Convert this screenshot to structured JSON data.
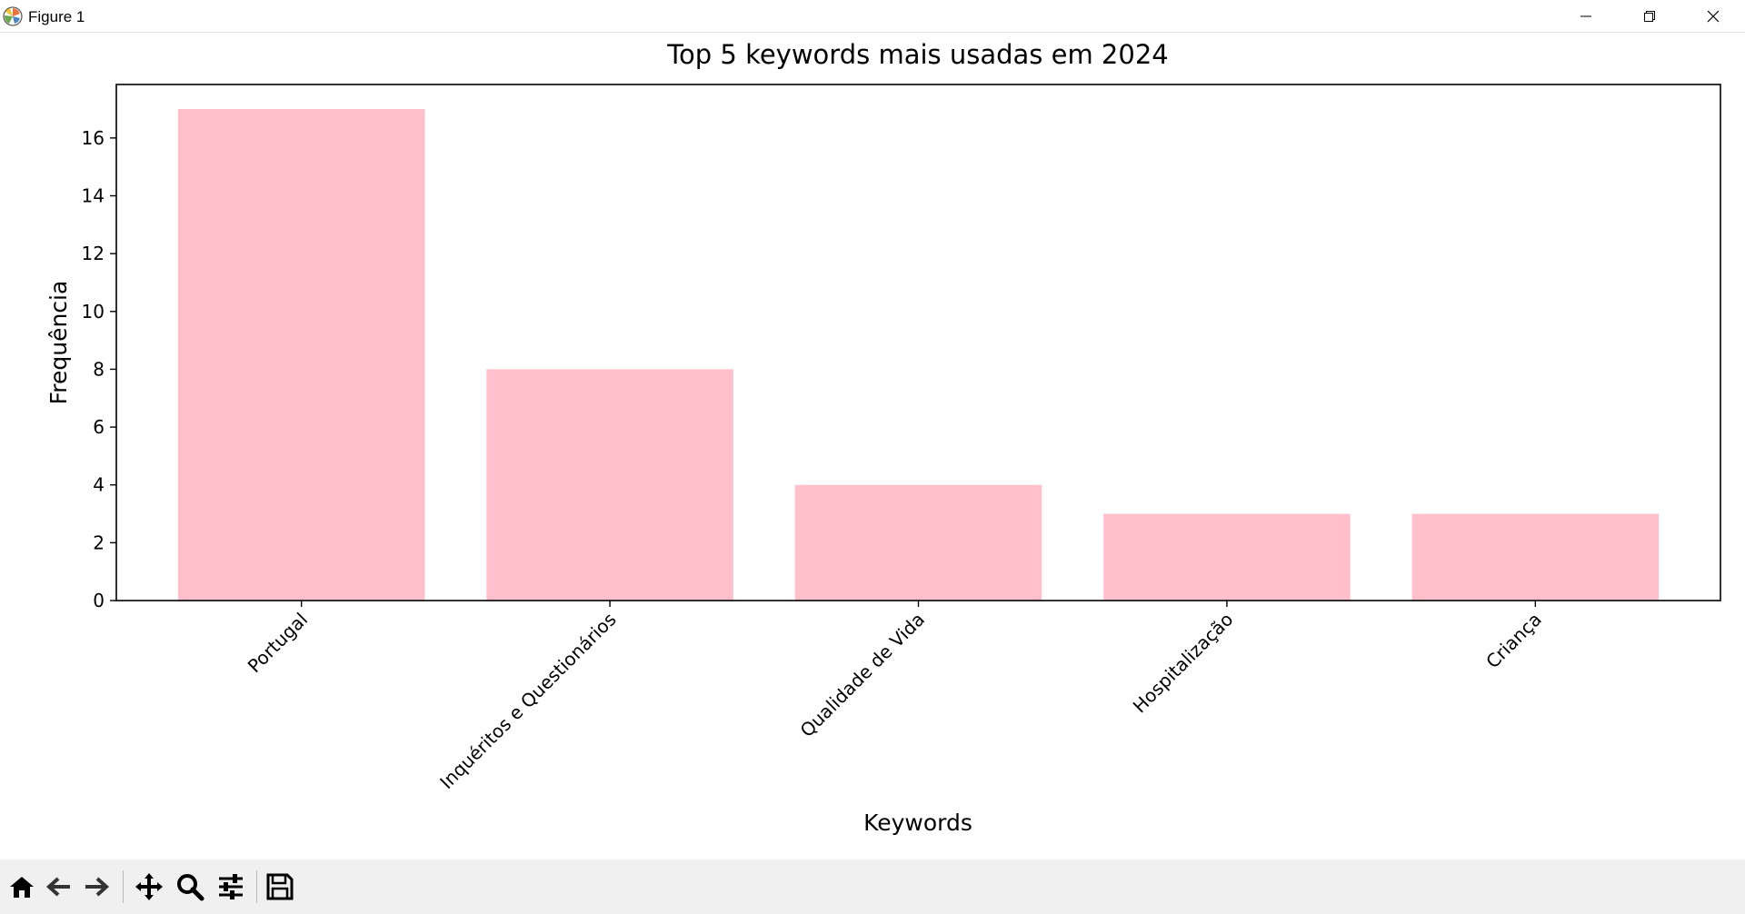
{
  "window": {
    "title": "Figure 1",
    "icon": "matplotlib-icon",
    "controls": [
      "minimize-icon",
      "restore-icon",
      "close-icon"
    ]
  },
  "toolbar": {
    "buttons": [
      "home-icon",
      "back-arrow-icon",
      "forward-arrow-icon",
      "pan-icon",
      "zoom-icon",
      "configure-subplots-icon",
      "save-icon"
    ]
  },
  "chart_data": {
    "type": "bar",
    "title": "Top 5 keywords mais usadas em 2024",
    "xlabel": "Keywords",
    "ylabel": "Frequência",
    "categories": [
      "Portugal",
      "Inquéritos e Questionários",
      "Qualidade de Vida",
      "Hospitalização",
      "Criança"
    ],
    "values": [
      17,
      8,
      4,
      3,
      3
    ],
    "ylim": [
      0,
      17.85
    ],
    "yticks": [
      0,
      2,
      4,
      6,
      8,
      10,
      12,
      14,
      16
    ],
    "bar_color": "#ffc0cb",
    "grid": false,
    "tick_label_rotation": 45
  }
}
